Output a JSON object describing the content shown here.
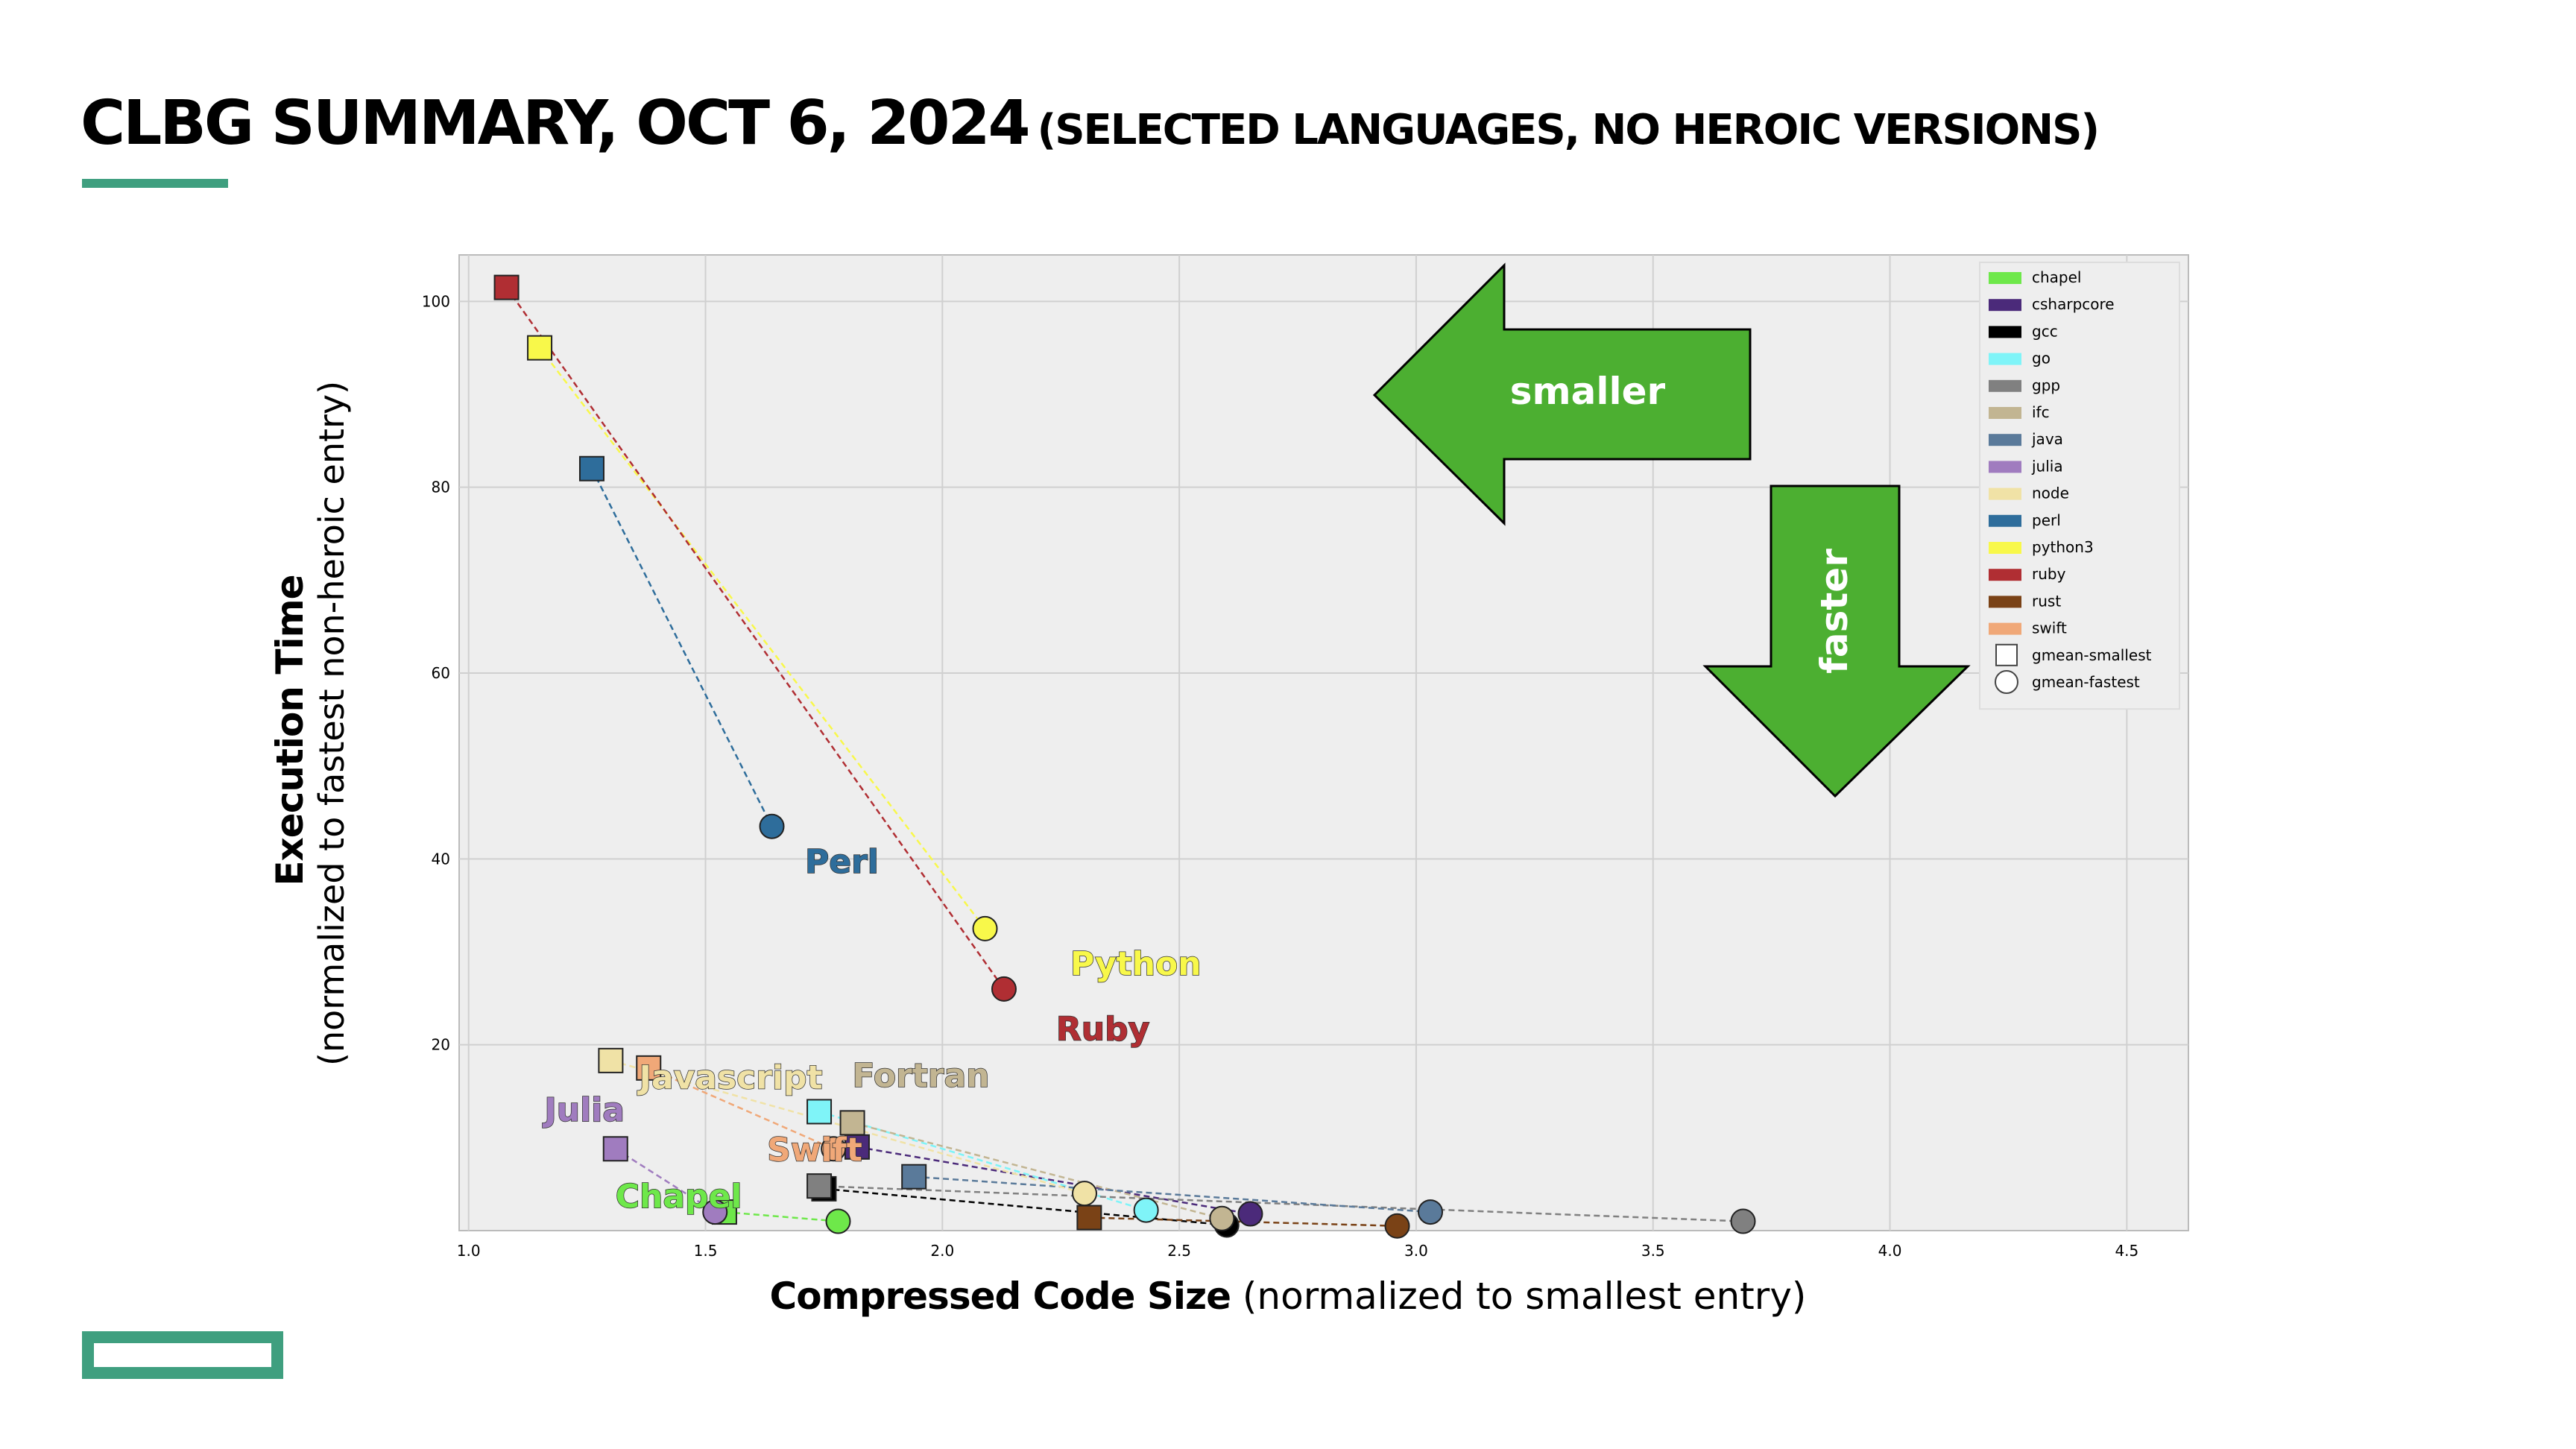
{
  "slide": {
    "title": "CLBG SUMMARY, OCT 6, 2024",
    "subtitle": "(SELECTED LANGUAGES, NO HEROIC VERSIONS)"
  },
  "axes": {
    "ylabel": "Execution Time",
    "ylabel_sub": "(normalized to fastest non-heroic entry)",
    "xlabel": "Compressed Code Size",
    "xlabel_sub": "(normalized to smallest entry)"
  },
  "arrows": {
    "left_label": "smaller",
    "down_label": "faster",
    "color": "#4caf31"
  },
  "chart_data": {
    "type": "scatter",
    "xlim": [
      0.98,
      4.63
    ],
    "ylim": [
      0,
      105
    ],
    "xticks": [
      "1.0",
      "1.5",
      "2.0",
      "2.5",
      "3.0",
      "3.5",
      "4.0",
      "4.5"
    ],
    "xtick_values": [
      1.0,
      1.5,
      2.0,
      2.5,
      3.0,
      3.5,
      4.0,
      4.5
    ],
    "yticks": [
      "20",
      "40",
      "60",
      "80",
      "100"
    ],
    "ytick_values": [
      20,
      40,
      60,
      80,
      100
    ],
    "grid": true,
    "legend_position": "top-right",
    "legend_markers": [
      {
        "name": "gmean-smallest",
        "marker": "square"
      },
      {
        "name": "gmean-fastest",
        "marker": "circle"
      }
    ],
    "series": [
      {
        "name": "chapel",
        "color": "#6ee84a",
        "smallest": [
          1.54,
          2.0
        ],
        "fastest": [
          1.78,
          1.0
        ],
        "label": "Chapel",
        "label_at": [
          1.31,
          2.5
        ]
      },
      {
        "name": "csharpcore",
        "color": "#4b2a7a",
        "smallest": [
          1.82,
          9.0
        ],
        "fastest": [
          2.65,
          1.8
        ]
      },
      {
        "name": "gcc",
        "color": "#000000",
        "smallest": [
          1.75,
          4.5
        ],
        "fastest": [
          2.6,
          0.6
        ]
      },
      {
        "name": "go",
        "color": "#7ff4f8",
        "smallest": [
          1.74,
          12.8
        ],
        "fastest": [
          2.43,
          2.2
        ]
      },
      {
        "name": "gpp",
        "color": "#808080",
        "smallest": [
          1.74,
          4.8
        ],
        "fastest": [
          3.69,
          1.0
        ]
      },
      {
        "name": "ifc",
        "color": "#c2b592",
        "smallest": [
          1.81,
          11.6
        ],
        "fastest": [
          2.59,
          1.3
        ],
        "label": "Fortran",
        "label_at": [
          1.81,
          15.5
        ]
      },
      {
        "name": "java",
        "color": "#5a7a9a",
        "smallest": [
          1.94,
          5.8
        ],
        "fastest": [
          3.03,
          2.0
        ]
      },
      {
        "name": "julia",
        "color": "#a07cbf",
        "smallest": [
          1.31,
          8.8
        ],
        "fastest": [
          1.52,
          2.0
        ],
        "label": "Julia",
        "label_at": [
          1.16,
          11.8
        ]
      },
      {
        "name": "node",
        "color": "#f0e2a6",
        "smallest": [
          1.3,
          18.3
        ],
        "fastest": [
          2.3,
          4.0
        ],
        "label": "Javascript",
        "label_at": [
          1.36,
          15.3
        ]
      },
      {
        "name": "perl",
        "color": "#2e6d9b",
        "smallest": [
          1.26,
          82.0
        ],
        "fastest": [
          1.64,
          43.5
        ],
        "label": "Perl",
        "label_at": [
          1.71,
          38.5
        ]
      },
      {
        "name": "python3",
        "color": "#f8f84a",
        "smallest": [
          1.15,
          95.0
        ],
        "fastest": [
          2.09,
          32.5
        ],
        "label": "Python",
        "label_at": [
          2.27,
          27.5
        ]
      },
      {
        "name": "ruby",
        "color": "#b02e33",
        "smallest": [
          1.08,
          101.5
        ],
        "fastest": [
          2.13,
          26.0
        ],
        "label": "Ruby",
        "label_at": [
          2.24,
          20.5
        ]
      },
      {
        "name": "rust",
        "color": "#7a4216",
        "smallest": [
          2.31,
          1.4
        ],
        "fastest": [
          2.96,
          0.5
        ]
      },
      {
        "name": "swift",
        "color": "#f0a878",
        "smallest": [
          1.38,
          17.5
        ],
        "fastest": [
          1.77,
          8.8
        ],
        "label": "Swift",
        "label_at": [
          1.63,
          7.5
        ]
      }
    ]
  }
}
